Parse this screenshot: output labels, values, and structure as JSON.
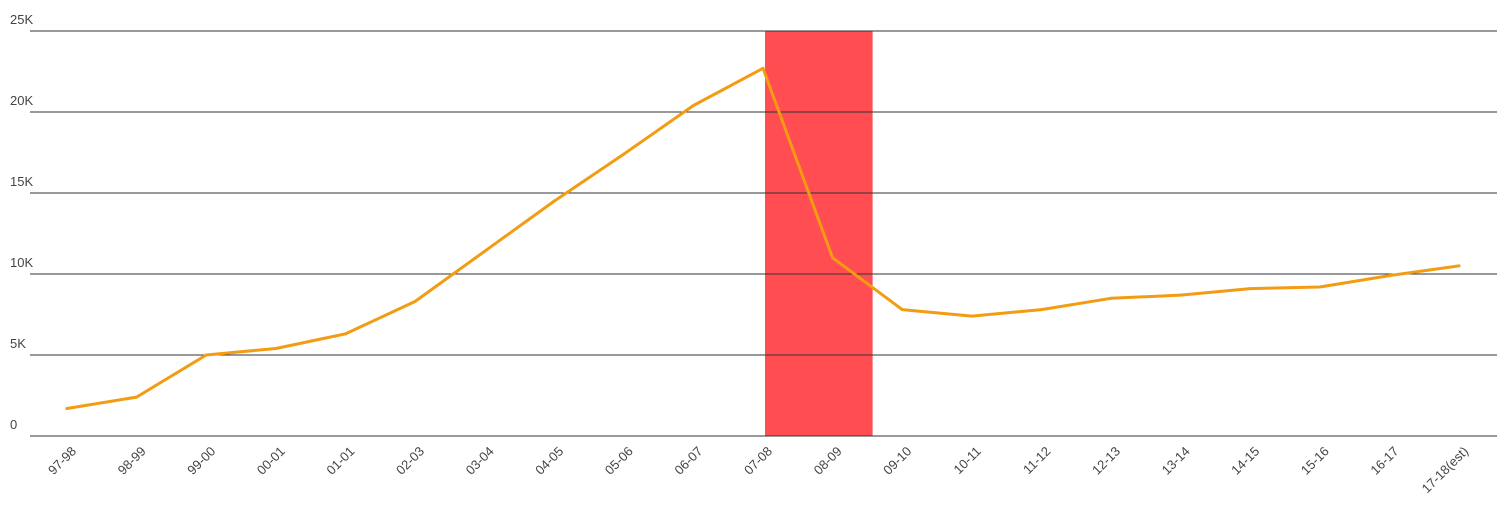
{
  "chart_data": {
    "type": "line",
    "title": "",
    "xlabel": "",
    "ylabel": "",
    "categories": [
      "97-98",
      "98-99",
      "99-00",
      "00-01",
      "01-01",
      "02-03",
      "03-04",
      "04-05",
      "05-06",
      "06-07",
      "07-08",
      "08-09",
      "09-10",
      "10-11",
      "11-12",
      "12-13",
      "13-14",
      "14-15",
      "15-16",
      "16-17",
      "17-18(est)"
    ],
    "series": [
      {
        "values": [
          1700,
          2400,
          5000,
          5400,
          6300,
          8300,
          11400,
          14500,
          17400,
          20400,
          22700,
          11000,
          7800,
          7400,
          7800,
          8500,
          8700,
          9100,
          9200,
          9900,
          10500
        ]
      }
    ],
    "ylim": [
      0,
      25000
    ],
    "yticks": [
      0,
      5000,
      10000,
      15000,
      20000,
      25000
    ],
    "ytick_labels": [
      "0",
      "5K",
      "10K",
      "15K",
      "20K",
      "25K"
    ],
    "grid": true,
    "highlight_band": {
      "from": "07-08",
      "to": "08-09",
      "color": "#ff4d52"
    },
    "colors": {
      "line": "#f39c12",
      "grid": "#333333",
      "text": "#444444",
      "highlight": "#ff4d52"
    }
  }
}
